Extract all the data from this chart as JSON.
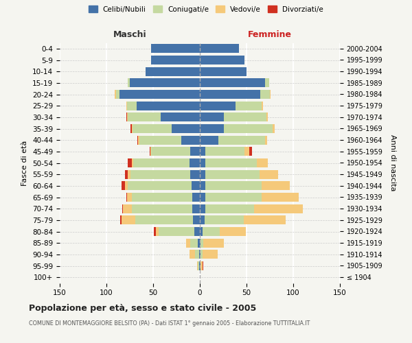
{
  "age_groups": [
    "100+",
    "95-99",
    "90-94",
    "85-89",
    "80-84",
    "75-79",
    "70-74",
    "65-69",
    "60-64",
    "55-59",
    "50-54",
    "45-49",
    "40-44",
    "35-39",
    "30-34",
    "25-29",
    "20-24",
    "15-19",
    "10-14",
    "5-9",
    "0-4"
  ],
  "birth_years": [
    "≤ 1904",
    "1905-1909",
    "1910-1914",
    "1915-1919",
    "1920-1924",
    "1925-1929",
    "1930-1934",
    "1935-1939",
    "1940-1944",
    "1945-1949",
    "1950-1954",
    "1955-1959",
    "1960-1964",
    "1965-1969",
    "1970-1974",
    "1975-1979",
    "1980-1984",
    "1985-1989",
    "1990-1994",
    "1995-1999",
    "2000-2004"
  ],
  "males": {
    "celibi": [
      0,
      1,
      1,
      2,
      6,
      7,
      8,
      8,
      9,
      10,
      11,
      10,
      20,
      30,
      42,
      68,
      86,
      75,
      58,
      52,
      52
    ],
    "coniugati": [
      0,
      1,
      4,
      8,
      38,
      62,
      65,
      65,
      68,
      64,
      60,
      42,
      45,
      42,
      35,
      10,
      4,
      2,
      0,
      0,
      0
    ],
    "vedovi": [
      0,
      1,
      6,
      5,
      3,
      15,
      9,
      5,
      3,
      3,
      2,
      1,
      1,
      1,
      1,
      1,
      1,
      0,
      0,
      0,
      0
    ],
    "divorziati": [
      0,
      0,
      0,
      0,
      2,
      1,
      1,
      1,
      4,
      3,
      4,
      1,
      1,
      1,
      1,
      0,
      0,
      0,
      0,
      0,
      0
    ]
  },
  "females": {
    "nubili": [
      0,
      1,
      1,
      1,
      3,
      5,
      6,
      6,
      6,
      6,
      6,
      6,
      20,
      26,
      26,
      38,
      65,
      70,
      50,
      48,
      42
    ],
    "coniugate": [
      0,
      0,
      2,
      3,
      18,
      42,
      52,
      60,
      60,
      58,
      55,
      42,
      50,
      52,
      45,
      28,
      10,
      4,
      0,
      0,
      0
    ],
    "vedove": [
      0,
      2,
      16,
      22,
      28,
      45,
      52,
      40,
      30,
      20,
      12,
      5,
      2,
      2,
      2,
      2,
      1,
      0,
      0,
      0,
      0
    ],
    "divorziate": [
      0,
      1,
      0,
      0,
      0,
      0,
      0,
      0,
      0,
      0,
      0,
      3,
      0,
      0,
      0,
      0,
      0,
      0,
      0,
      0,
      0
    ]
  },
  "colors": {
    "celibi": "#4472a8",
    "coniugati": "#c5d9a0",
    "vedovi": "#f5c97a",
    "divorziati": "#d03020"
  },
  "xlim": 150,
  "title": "Popolazione per età, sesso e stato civile - 2005",
  "subtitle": "COMUNE DI MONTEMAGGIORE BELSITO (PA) - Dati ISTAT 1° gennaio 2005 - Elaborazione TUTTITALIA.IT",
  "ylabel_left": "Fasce di età",
  "ylabel_right": "Anni di nascita",
  "legend_labels": [
    "Celibi/Nubili",
    "Coniugati/e",
    "Vedovi/e",
    "Divorziati/e"
  ],
  "background_color": "#f5f5f0"
}
